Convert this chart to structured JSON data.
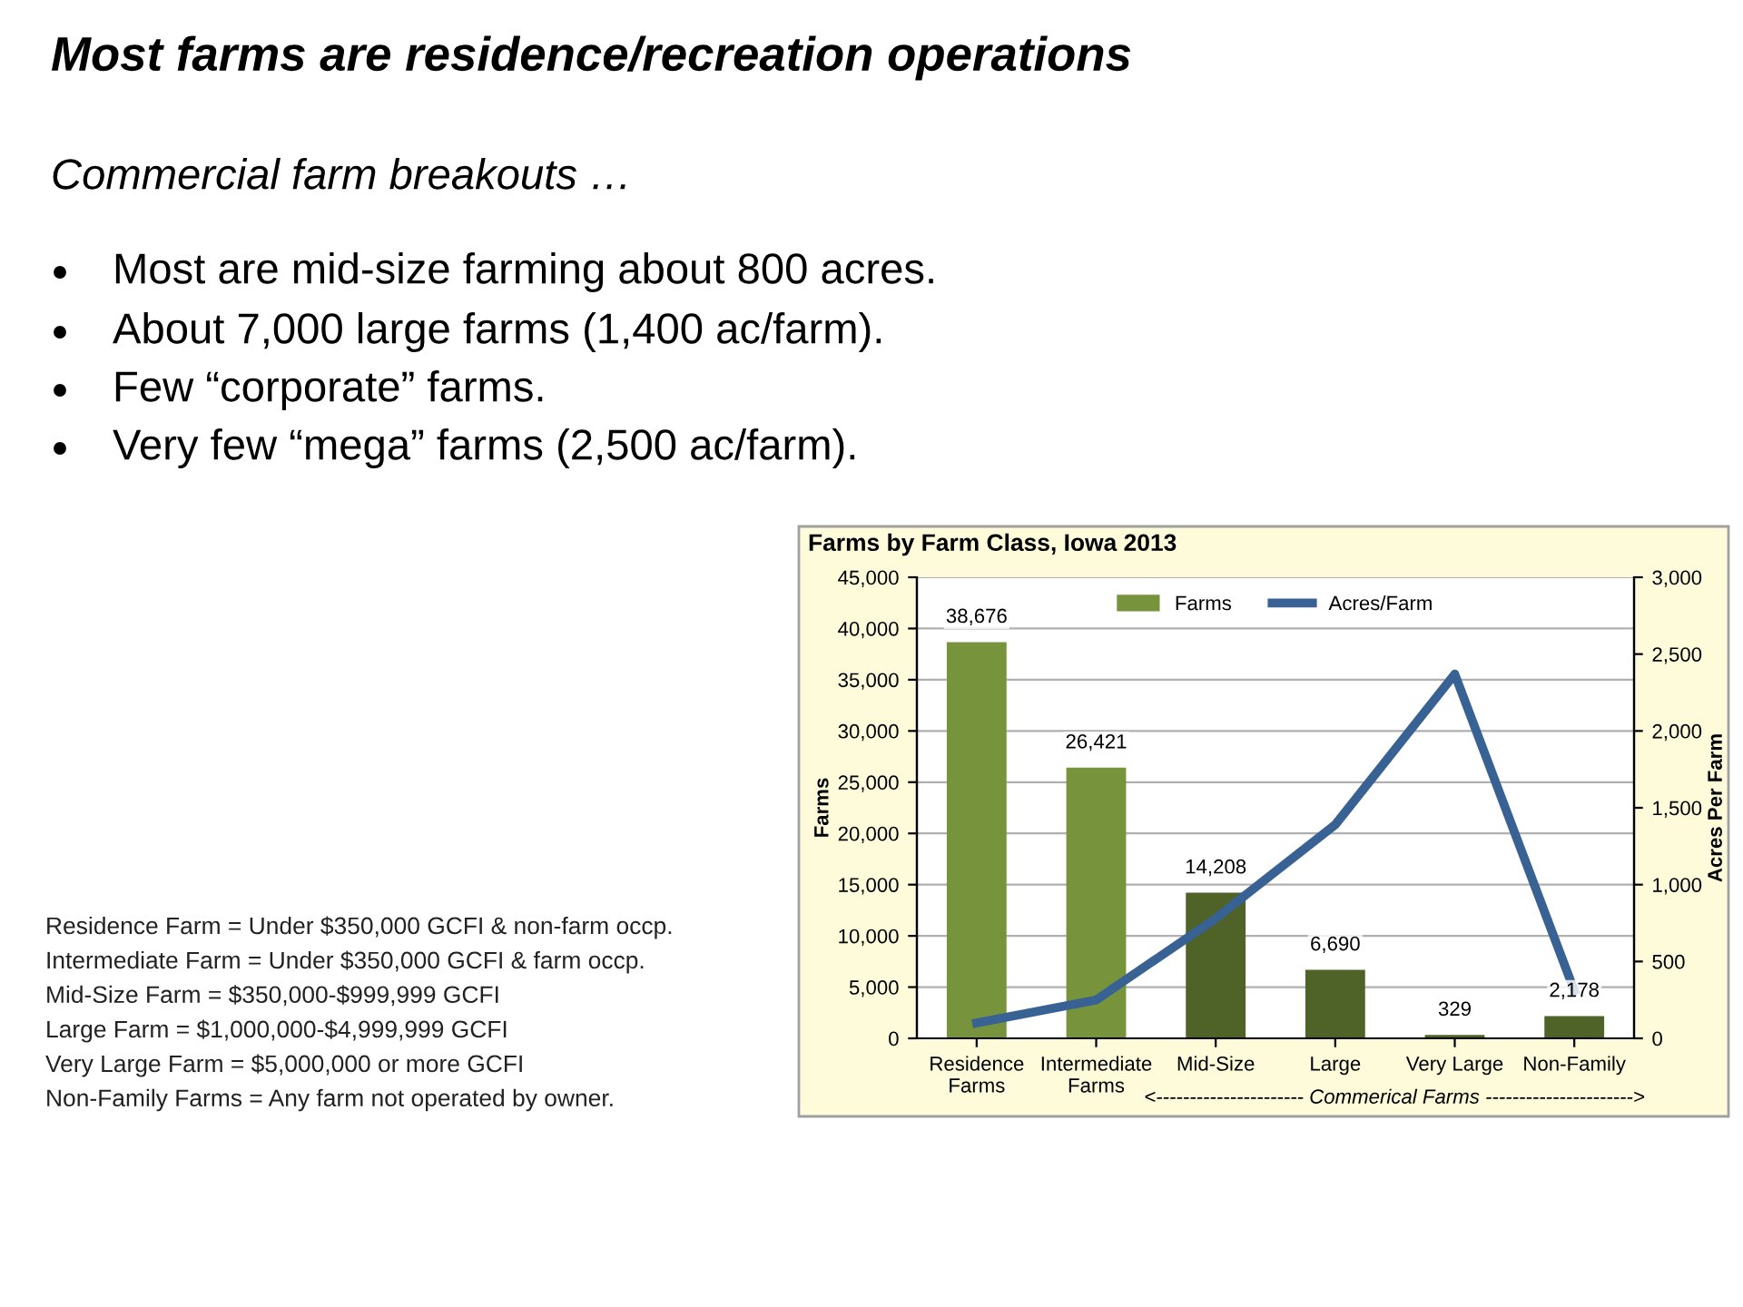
{
  "chart_data": {
    "type": "bar",
    "title": "Farms by Farm Class, Iowa 2013",
    "categories": [
      "Residence\nFarms",
      "Intermediate\nFarms",
      "Mid-Size",
      "Large",
      "Very Large",
      "Non-Family"
    ],
    "series": [
      {
        "name": "Farms",
        "color": "#77933c",
        "colors": [
          "#77933c",
          "#77933c",
          "#4f6228",
          "#4f6228",
          "#4f6228",
          "#4f6228"
        ],
        "values": [
          38676,
          26421,
          14208,
          6690,
          329,
          2178
        ],
        "value_labels": [
          "38,676",
          "26,421",
          "14,208",
          "6,690",
          "329",
          "2,178"
        ]
      },
      {
        "name": "Acres/Farm",
        "type": "line",
        "axis": "y2",
        "color": "#386194",
        "values": [
          100,
          250,
          780,
          1390,
          2370,
          310
        ]
      }
    ],
    "ylabel": "Farms",
    "y2label": "Acres Per Farm",
    "ylim": [
      0,
      45000
    ],
    "yticks": [
      {
        "value": 0,
        "label": "0"
      },
      {
        "value": 5000,
        "label": "5,000"
      },
      {
        "value": 10000,
        "label": "10,000"
      },
      {
        "value": 15000,
        "label": "15,000"
      },
      {
        "value": 20000,
        "label": "20,000"
      },
      {
        "value": 25000,
        "label": "25,000"
      },
      {
        "value": 30000,
        "label": "30,000"
      },
      {
        "value": 35000,
        "label": "35,000"
      },
      {
        "value": 40000,
        "label": "40,000"
      },
      {
        "value": 45000,
        "label": "45,000"
      }
    ],
    "y2lim": [
      0,
      3000
    ],
    "y2ticks": [
      {
        "value": 0,
        "label": "0"
      },
      {
        "value": 500,
        "label": "500"
      },
      {
        "value": 1000,
        "label": "1,000"
      },
      {
        "value": 1500,
        "label": "1,500"
      },
      {
        "value": 2000,
        "label": "2,000"
      },
      {
        "value": 2500,
        "label": "2,500"
      },
      {
        "value": 3000,
        "label": "3,000"
      }
    ],
    "grid": "y",
    "legend": "top",
    "marker": "none",
    "line_style": "solid",
    "annotations": [
      "Most farms are residence/recreation operations",
      "Commercial farm breakouts …",
      "Most are mid-size farming about 800 acres.",
      "About 7,000 large farms (1,400 ac/farm).",
      "Few “corporate” farms.",
      "Very few “mega” farms (2,500 ac/farm).",
      "Residence Farm = Under $350,000 GCFI & non-farm occp.",
      "Intermediate Farm = Under $350,000 GCFI & farm occp.",
      "Mid-Size Farm = $350,000-$999,999 GCFI",
      "Large Farm = $1,000,000-$4,999,999 GCFI",
      "Very Large Farm = $5,000,000 or more GCFI",
      "Non-Family Farms = Any farm not operated by owner.",
      "<---------------------- Commerical Farms ---------------------->"
    ]
  }
}
